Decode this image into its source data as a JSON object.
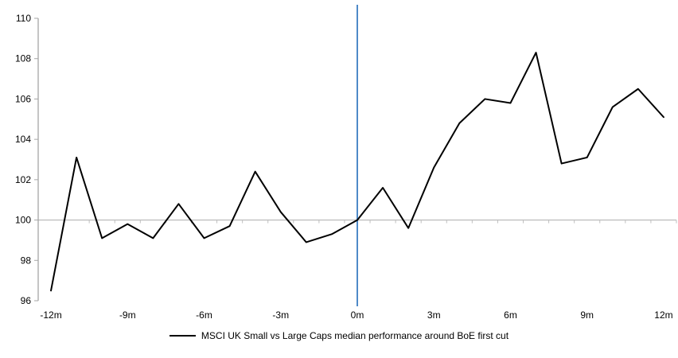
{
  "chart_data": {
    "type": "line",
    "title": "",
    "x": [
      -12,
      -11,
      -10,
      -9,
      -8,
      -7,
      -6,
      -5,
      -4,
      -3,
      -2,
      -1,
      0,
      1,
      2,
      3,
      4,
      5,
      6,
      7,
      8,
      9,
      10,
      11,
      12
    ],
    "series": [
      {
        "name": "MSCI UK Small vs Large Caps median performance around BoE first cut",
        "values": [
          96.5,
          103.1,
          99.1,
          99.8,
          99.1,
          100.8,
          99.1,
          99.7,
          102.4,
          100.4,
          98.9,
          99.3,
          100.0,
          101.6,
          99.6,
          102.6,
          104.8,
          106.0,
          105.8,
          108.3,
          102.8,
          103.1,
          105.6,
          106.5,
          105.1
        ]
      }
    ],
    "xlabel": "",
    "ylabel": "",
    "ylim": [
      96,
      110
    ],
    "y_ticks": [
      96,
      98,
      100,
      102,
      104,
      106,
      108,
      110
    ],
    "x_tick_labels": [
      "-12m",
      "-9m",
      "-6m",
      "-3m",
      "0m",
      "3m",
      "6m",
      "9m",
      "12m"
    ],
    "x_tick_values": [
      -12,
      -9,
      -6,
      -3,
      0,
      3,
      6,
      9,
      12
    ],
    "x_axis_crosses_at_y": 100,
    "event_line_x": 0,
    "grid": "off",
    "legend_position": "bottom-center",
    "colors": {
      "series_line": "#000000",
      "event_line": "#4e8ac8",
      "y_axis": "#a6a6a6",
      "x_axis": "#bfbfbf",
      "tick_text": "#000000"
    }
  },
  "legend": {
    "label": "MSCI UK Small vs Large Caps median performance around BoE first cut"
  }
}
